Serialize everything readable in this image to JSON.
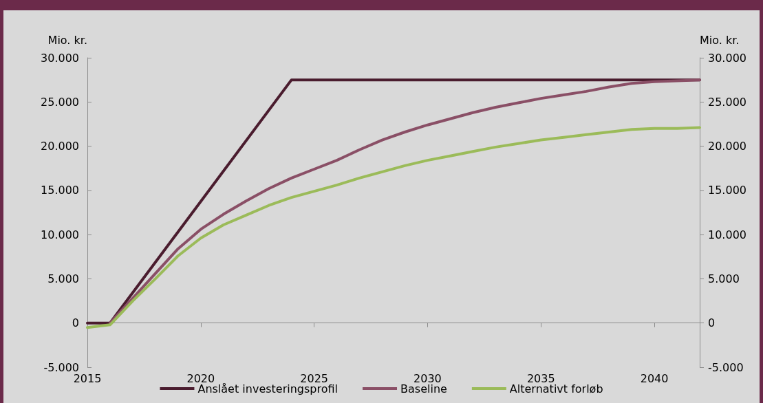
{
  "chart_data": {
    "type": "line",
    "ylabel": "Mio. kr.",
    "y2label": "Mio. kr.",
    "xlim": [
      2015,
      2042
    ],
    "xticks": [
      2015,
      2020,
      2025,
      2030,
      2035,
      2040
    ],
    "ylim": [
      -5000,
      30000
    ],
    "yticks": [
      {
        "value": -5000,
        "label": "-5.000"
      },
      0,
      {
        "value": 5000,
        "label": "5.000"
      },
      {
        "value": 10000,
        "label": "10.000"
      },
      {
        "value": 15000,
        "label": "15.000"
      },
      {
        "value": 20000,
        "label": "20.000"
      },
      {
        "value": 25000,
        "label": "25.000"
      },
      {
        "value": 30000,
        "label": "30.000"
      }
    ],
    "y2lim": [
      -5000,
      30000
    ],
    "y2ticks": [
      {
        "value": -5000,
        "label": "-5.000"
      },
      0,
      {
        "value": 5000,
        "label": "5.000"
      },
      {
        "value": 10000,
        "label": "10.000"
      },
      {
        "value": 15000,
        "label": "15.000"
      },
      {
        "value": 20000,
        "label": "20.000"
      },
      {
        "value": 25000,
        "label": "25.000"
      },
      {
        "value": 30000,
        "label": "30.000"
      }
    ],
    "legend": "bottom",
    "marker": "none",
    "line_style": "solid",
    "series": [
      {
        "name": "Anslået investeringsprofil",
        "color": "#4a1c2e",
        "x": [
          2015,
          2016,
          2024,
          2042
        ],
        "values": [
          0,
          0,
          27500,
          27500
        ]
      },
      {
        "name": "Baseline",
        "color": "#8a4f66",
        "x": [
          2016,
          2017,
          2018,
          2019,
          2020,
          2021,
          2022,
          2023,
          2024,
          2025,
          2026,
          2027,
          2028,
          2029,
          2030,
          2031,
          2032,
          2033,
          2034,
          2035,
          2036,
          2037,
          2038,
          2039,
          2040,
          2041,
          2042
        ],
        "values": [
          0,
          2800,
          5600,
          8400,
          10600,
          12300,
          13800,
          15200,
          16400,
          17400,
          18400,
          19600,
          20700,
          21600,
          22400,
          23100,
          23800,
          24400,
          24900,
          25400,
          25800,
          26200,
          26700,
          27100,
          27300,
          27400,
          27500
        ]
      },
      {
        "name": "Alternativt forløb",
        "color": "#9bbb59",
        "x": [
          2015,
          2016,
          2017,
          2018,
          2019,
          2020,
          2021,
          2022,
          2023,
          2024,
          2025,
          2026,
          2027,
          2028,
          2029,
          2030,
          2031,
          2032,
          2033,
          2034,
          2035,
          2036,
          2037,
          2038,
          2039,
          2040,
          2041,
          2042
        ],
        "values": [
          -500,
          -200,
          2500,
          5000,
          7600,
          9600,
          11100,
          12200,
          13300,
          14200,
          14900,
          15600,
          16400,
          17100,
          17800,
          18400,
          18900,
          19400,
          19900,
          20300,
          20700,
          21000,
          21300,
          21600,
          21900,
          22000,
          22000,
          22100
        ]
      }
    ]
  }
}
